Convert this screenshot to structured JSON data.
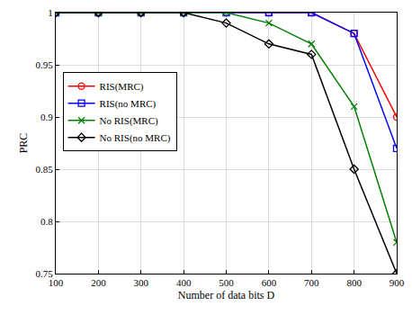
{
  "chart_data": {
    "type": "line",
    "x_label": "Number of data bits D",
    "y_label": "PRC",
    "x": [
      100,
      200,
      300,
      400,
      500,
      600,
      700,
      800,
      900
    ],
    "series": [
      {
        "name": "RIS(MRC)",
        "color": "#ff0000",
        "marker": "circle-open",
        "values": [
          1,
          1,
          1,
          1,
          1,
          1,
          1,
          0.98,
          0.9
        ]
      },
      {
        "name": "RIS(no MRC)",
        "color": "#0000ff",
        "marker": "square-open",
        "values": [
          1,
          1,
          1,
          1,
          1,
          1,
          1,
          0.98,
          0.87
        ]
      },
      {
        "name": "No RIS(MRC)",
        "color": "#008000",
        "marker": "x-thin-open",
        "values": [
          1,
          1,
          1,
          1,
          1,
          0.99,
          0.97,
          0.91,
          0.78
        ]
      },
      {
        "name": "No RIS(no MRC)",
        "color": "#000000",
        "marker": "diamond-open",
        "values": [
          1,
          1,
          1,
          1,
          0.99,
          0.97,
          0.96,
          0.85,
          0.75
        ]
      }
    ],
    "xlim": [
      100,
      900
    ],
    "xticks": [
      100,
      200,
      300,
      400,
      500,
      600,
      700,
      800,
      900
    ],
    "ylim": [
      0.75,
      1
    ],
    "yticks": [
      0.75,
      0.8,
      0.85,
      0.9,
      0.95,
      1
    ],
    "grid": true,
    "legend": "center left"
  }
}
